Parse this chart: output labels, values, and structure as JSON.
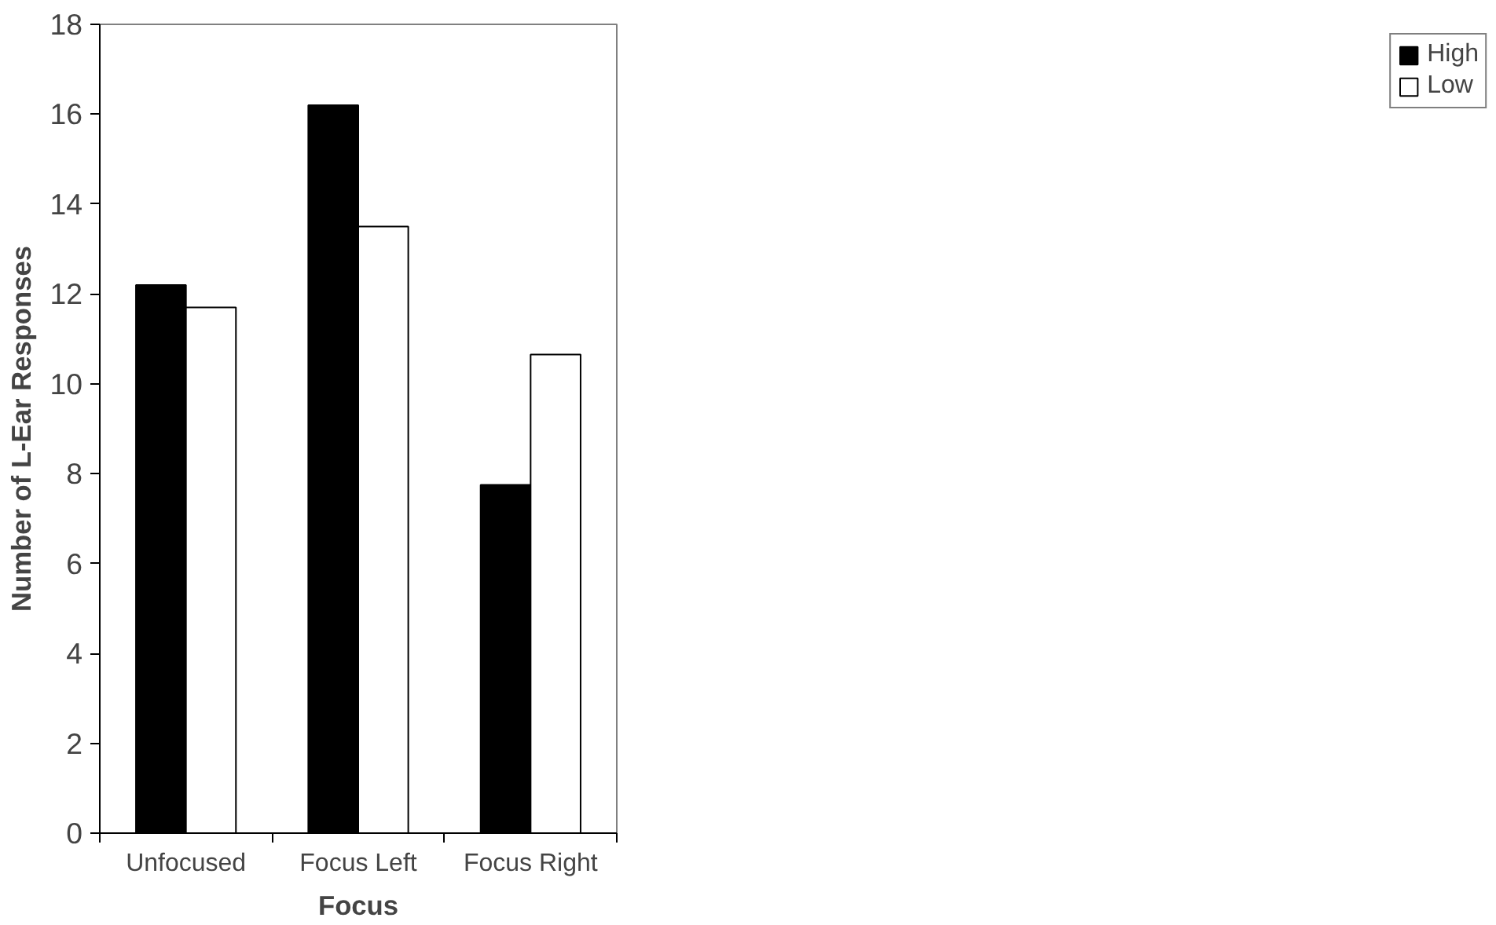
{
  "chart_data": {
    "type": "bar",
    "xlabel": "Focus",
    "ylabel": "Number of L-Ear Responses",
    "categories": [
      "Unfocused",
      "Focus Left",
      "Focus Right"
    ],
    "series": [
      {
        "name": "High",
        "color": "#000000",
        "values": [
          12.2,
          16.2,
          7.75
        ]
      },
      {
        "name": "Low",
        "color": "#ffffff",
        "values": [
          11.7,
          13.5,
          10.65
        ]
      }
    ],
    "ylim": [
      0,
      18
    ],
    "yticks": [
      0,
      2,
      4,
      6,
      8,
      10,
      12,
      14,
      16,
      18
    ],
    "grid": false,
    "legend": "right"
  }
}
